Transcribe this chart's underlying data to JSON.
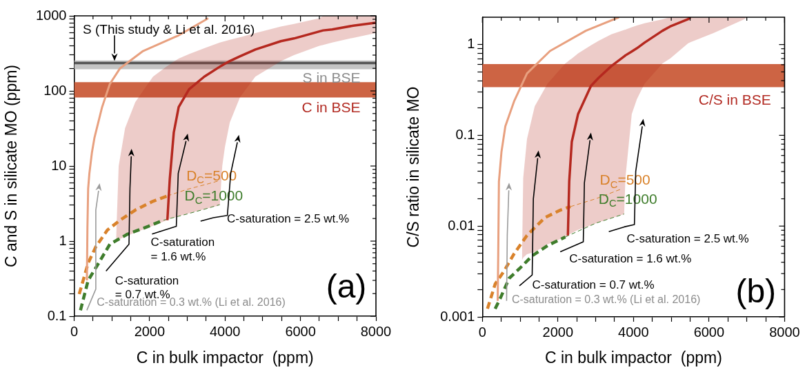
{
  "chart_data": [
    {
      "type": "line",
      "xlabel": "C in bulk impactor  (ppm)",
      "ylabel": "C and S in silicate MO (ppm)",
      "log": "y",
      "xlim": [
        0,
        8000
      ],
      "xticks": [
        0,
        {
          "value": 500,
          "label": null
        },
        {
          "value": 1000,
          "label": null
        },
        {
          "value": 1500,
          "label": null
        },
        2000,
        {
          "value": 2500,
          "label": null
        },
        {
          "value": 3000,
          "label": null
        },
        {
          "value": 3500,
          "label": null
        },
        4000,
        {
          "value": 4500,
          "label": null
        },
        {
          "value": 5000,
          "label": null
        },
        {
          "value": 5500,
          "label": null
        },
        6000,
        {
          "value": 6500,
          "label": null
        },
        {
          "value": 7000,
          "label": null
        },
        {
          "value": 7500,
          "label": null
        },
        8000
      ],
      "ylim": [
        0.1,
        1000
      ],
      "yticks": [
        0.1,
        {
          "value": 0.2,
          "label": null
        },
        {
          "value": 0.3,
          "label": null
        },
        {
          "value": 0.4,
          "label": null
        },
        {
          "value": 0.5,
          "label": null
        },
        {
          "value": 0.6,
          "label": null
        },
        {
          "value": 0.7,
          "label": null
        },
        {
          "value": 0.8,
          "label": null
        },
        {
          "value": 0.9,
          "label": null
        },
        1,
        {
          "value": 2,
          "label": null
        },
        {
          "value": 3,
          "label": null
        },
        {
          "value": 4,
          "label": null
        },
        {
          "value": 5,
          "label": null
        },
        {
          "value": 6,
          "label": null
        },
        {
          "value": 7,
          "label": null
        },
        {
          "value": 8,
          "label": null
        },
        {
          "value": 9,
          "label": null
        },
        10,
        {
          "value": 20,
          "label": null
        },
        {
          "value": 30,
          "label": null
        },
        {
          "value": 40,
          "label": null
        },
        {
          "value": 50,
          "label": null
        },
        {
          "value": 60,
          "label": null
        },
        {
          "value": 70,
          "label": null
        },
        {
          "value": 80,
          "label": null
        },
        {
          "value": 90,
          "label": null
        },
        100,
        {
          "value": 200,
          "label": null
        },
        {
          "value": 300,
          "label": null
        },
        {
          "value": 400,
          "label": null
        },
        {
          "value": 500,
          "label": null
        },
        {
          "value": 600,
          "label": null
        },
        {
          "value": 700,
          "label": null
        },
        {
          "value": 800,
          "label": null
        },
        {
          "value": 900,
          "label": null
        },
        1000
      ],
      "bands": [
        {
          "axis": "y",
          "from": 195,
          "to": 255,
          "label": "S in BSE",
          "color": "#c4c4c4"
        },
        {
          "axis": "y",
          "from": 82,
          "to": 131,
          "label": "C in BSE",
          "color": "#cd6444"
        }
      ],
      "ref_lines": [
        {
          "axis": "y",
          "value": 235,
          "label": "S (This study & Li et al. 2016)",
          "color": "#555555"
        }
      ],
      "series": [
        {
          "color": "#b5281f",
          "x": [
            1110,
            1180,
            1350,
            1620,
            2090,
            2471,
            2535,
            2641,
            2771,
            3046,
            3450,
            3860,
            3926,
            3997,
            4126,
            4400,
            4804,
            5480,
            5827,
            6500,
            6600,
            6840,
            7400,
            7991
          ],
          "values": [
            null,
            null,
            null,
            null,
            null,
            1.9,
            6.7,
            28,
            61,
            105,
            155,
            210,
            220,
            230,
            250,
            290,
            356,
            460,
            500,
            620,
            640,
            660,
            740,
            810
          ],
          "lower": [
            1.0,
            1.05,
            1.15,
            1.3,
            1.6,
            1.9,
            2.0,
            2.05,
            2.15,
            2.35,
            2.65,
            3.0,
            10,
            18,
            38,
            83,
            155,
            250,
            300,
            400,
            410,
            440,
            510,
            590
          ],
          "upper": [
            1.0,
            10,
            32,
            71,
            155,
            215,
            225,
            245,
            270,
            310,
            370,
            440,
            450,
            460,
            480,
            520,
            590,
            720,
            780,
            930,
            1000,
            1000,
            1000,
            1000
          ]
        },
        {
          "color": "#e8a07f",
          "x": [
            338,
            352,
            371,
            404,
            470,
            540,
            741,
            947,
            1216,
            1827,
            2771,
            3555
          ],
          "values": [
            0.3,
            1.5,
            5,
            8,
            15,
            24,
            61,
            124,
            200,
            340,
            550,
            930
          ]
        },
        {
          "name": "D$_{C}$=500",
          "color": "#d9822b",
          "line_style": "dashed",
          "x": [
            134,
            371,
            574,
            880,
            1216,
            1624,
            2094,
            2471
          ],
          "values": [
            0.197,
            0.51,
            0.84,
            1.4,
            1.9,
            2.6,
            3.4,
            4.0
          ]
        },
        {
          "color": "#d9822b",
          "line_style": "dashed",
          "x": [
            2471,
            3000,
            3500,
            3860
          ],
          "values": [
            4.0,
            4.9,
            5.7,
            6.4
          ]
        },
        {
          "name": "D$_{C}$=1000",
          "color": "#3f7d2c",
          "line_style": "dashed",
          "x": [
            168,
            371,
            607,
            947,
            1418,
            1963,
            2370
          ],
          "values": [
            0.12,
            0.3,
            0.47,
            0.91,
            1.24,
            1.57,
            1.9
          ]
        },
        {
          "color": "#3f7d2c",
          "line_style": "dashed",
          "x": [
            2370,
            3000,
            3500,
            3859
          ],
          "values": [
            1.9,
            2.3,
            2.7,
            3.06
          ]
        }
      ],
      "annotations": [
        "C-saturation = 0.3 wt.% (Li et al. 2016)",
        "C-saturation = 0.7 wt.%",
        "C-saturation = 1.6 wt.%",
        "C-saturation = 2.5 wt.%",
        "(a)"
      ]
    },
    {
      "type": "line",
      "xlabel": "C in bulk impactor  (ppm)",
      "ylabel": "C/S ratio in silicate MO",
      "log": "y",
      "xlim": [
        0,
        8000
      ],
      "xticks": [
        0,
        {
          "value": 500,
          "label": null
        },
        {
          "value": 1000,
          "label": null
        },
        {
          "value": 1500,
          "label": null
        },
        2000,
        {
          "value": 2500,
          "label": null
        },
        {
          "value": 3000,
          "label": null
        },
        {
          "value": 3500,
          "label": null
        },
        4000,
        {
          "value": 4500,
          "label": null
        },
        {
          "value": 5000,
          "label": null
        },
        {
          "value": 5500,
          "label": null
        },
        6000,
        {
          "value": 6500,
          "label": null
        },
        {
          "value": 7000,
          "label": null
        },
        {
          "value": 7500,
          "label": null
        },
        8000
      ],
      "ylim": [
        0.001,
        2
      ],
      "yticks": [
        0.001,
        {
          "value": 0.002,
          "label": null
        },
        {
          "value": 0.003,
          "label": null
        },
        {
          "value": 0.004,
          "label": null
        },
        {
          "value": 0.005,
          "label": null
        },
        {
          "value": 0.006,
          "label": null
        },
        {
          "value": 0.007,
          "label": null
        },
        {
          "value": 0.008,
          "label": null
        },
        {
          "value": 0.009,
          "label": null
        },
        0.01,
        {
          "value": 0.02,
          "label": null
        },
        {
          "value": 0.03,
          "label": null
        },
        {
          "value": 0.04,
          "label": null
        },
        {
          "value": 0.05,
          "label": null
        },
        {
          "value": 0.06,
          "label": null
        },
        {
          "value": 0.07,
          "label": null
        },
        {
          "value": 0.08,
          "label": null
        },
        {
          "value": 0.09,
          "label": null
        },
        0.1,
        {
          "value": 0.2,
          "label": null
        },
        {
          "value": 0.3,
          "label": null
        },
        {
          "value": 0.4,
          "label": null
        },
        {
          "value": 0.5,
          "label": null
        },
        {
          "value": 0.6,
          "label": null
        },
        {
          "value": 0.7,
          "label": null
        },
        {
          "value": 0.8,
          "label": null
        },
        {
          "value": 0.9,
          "label": null
        },
        1
      ],
      "bands": [
        {
          "axis": "y",
          "from": 0.34,
          "to": 0.61,
          "label": "C/S in BSE",
          "color": "#cd6444"
        }
      ],
      "series": [
        {
          "color": "#b5281f",
          "x": [
            1048,
            1081,
            1181,
            1386,
            1724,
            2197,
            2264,
            2299,
            2367,
            2534,
            2874,
            3077,
            3415,
            3753,
            3787,
            3955,
            4090,
            4293,
            4768,
            4970,
            5443,
            5509,
            6119,
            6931,
            7000
          ],
          "values": [
            null,
            null,
            null,
            null,
            null,
            null,
            0.0079,
            0.031,
            0.085,
            0.172,
            0.35,
            0.43,
            0.58,
            0.74,
            0.76,
            0.84,
            0.91,
            1.05,
            1.42,
            1.58,
            1.9,
            2.0,
            null,
            null,
            null
          ],
          "lower": [
            0.0042,
            0.0045,
            0.0049,
            0.0052,
            0.0063,
            0.0076,
            0.0079,
            0.0081,
            0.0084,
            0.0091,
            0.0102,
            0.011,
            0.0122,
            0.0136,
            0.034,
            0.172,
            0.25,
            0.37,
            0.62,
            0.7,
            1.03,
            1.06,
            1.34,
            1.9,
            2.0
          ],
          "upper": [
            0.0042,
            0.034,
            0.091,
            0.209,
            0.37,
            0.62,
            0.65,
            0.67,
            0.7,
            0.8,
            0.98,
            1.1,
            1.3,
            1.45,
            1.46,
            1.55,
            1.62,
            1.72,
            1.9,
            2.0,
            2.0,
            2.0,
            2.0,
            2.0,
            2.0
          ]
        },
        {
          "color": "#e8a07f",
          "x": [
            405,
            420,
            438,
            506,
            608,
            845,
            1181,
            1791,
            2739,
            3617
          ],
          "values": [
            0.0015,
            0.005,
            0.031,
            0.066,
            0.126,
            0.24,
            0.48,
            0.85,
            1.42,
            2.0
          ]
        },
        {
          "name": "D$_{C}$=500",
          "color": "#d9822b",
          "line_style": "dashed",
          "x": [
            135,
            338,
            573,
            845,
            1181,
            1656,
            2062,
            2332
          ],
          "values": [
            0.00123,
            0.0023,
            0.0032,
            0.005,
            0.0079,
            0.0124,
            0.015,
            0.0164
          ]
        },
        {
          "color": "#d9822b",
          "line_style": "dashed",
          "x": [
            2332,
            3000,
            3685
          ],
          "values": [
            0.0164,
            0.02,
            0.0257
          ]
        },
        {
          "name": "D$_{C}$=1000",
          "color": "#3f7d2c",
          "line_style": "dashed",
          "x": [
            338,
            473,
            709,
            981,
            1318,
            1724,
            2197
          ],
          "values": [
            0.00123,
            0.0016,
            0.00266,
            0.0034,
            0.0047,
            0.0061,
            0.0076
          ]
        },
        {
          "color": "#3f7d2c",
          "line_style": "dashed",
          "x": [
            2197,
            3009,
            3753
          ],
          "values": [
            0.0076,
            0.0108,
            0.0136
          ]
        }
      ],
      "annotations": [
        "C-saturation = 0.3 wt.% (Li et al. 2016)",
        "C-saturation = 0.7 wt.%",
        "C-saturation = 1.6 wt.%",
        "C-saturation = 2.5 wt.%",
        "(b)"
      ]
    }
  ]
}
